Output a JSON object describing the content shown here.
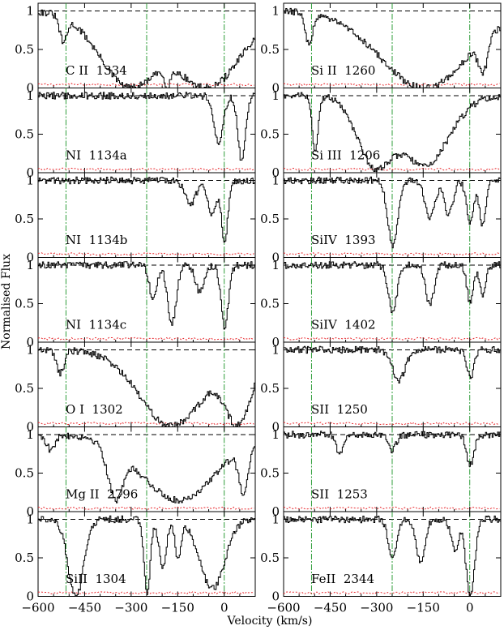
{
  "chart_data": {
    "type": "line",
    "xlabel": "Velocity (km/s)",
    "ylabel": "Normalised Flux",
    "xlim": [
      -600,
      100
    ],
    "ylim": [
      0,
      1.1
    ],
    "x_ticks": [
      -600,
      -450,
      -300,
      -150,
      0
    ],
    "x_tick_labels": [
      "−600",
      "−450",
      "−300",
      "−150",
      "0"
    ],
    "y_ticks": [
      0,
      0.5,
      1
    ],
    "y_tick_labels": [
      "0",
      "0.5",
      "1"
    ],
    "vertical_markers_kms": [
      -510,
      -250,
      0
    ],
    "continuum_level": 1,
    "colors": {
      "flux": "#000000",
      "continuum": "#000000",
      "error": "#e8262b",
      "markers": "#2f9e3a",
      "blend": "#8c8c8c"
    },
    "panels": [
      {
        "column": "left",
        "row": 0,
        "label": "C II  1334",
        "absorptions": [
          [
            -520,
            0.35,
            12
          ],
          [
            -300,
            1.0,
            100
          ],
          [
            -185,
            0.9,
            10
          ],
          [
            -60,
            1.0,
            110
          ]
        ]
      },
      {
        "column": "left",
        "row": 1,
        "label": "NI  1134a",
        "absorptions": [
          [
            -20,
            0.6,
            15
          ],
          [
            55,
            0.85,
            12
          ]
        ]
      },
      {
        "column": "left",
        "row": 2,
        "label": "NI  1134b",
        "absorptions": [
          [
            -110,
            0.3,
            18
          ],
          [
            -40,
            0.45,
            14
          ],
          [
            0,
            0.8,
            10
          ]
        ]
      },
      {
        "column": "left",
        "row": 3,
        "label": "NI  1134c",
        "absorptions": [
          [
            -230,
            0.45,
            12
          ],
          [
            -170,
            0.75,
            14
          ],
          [
            -80,
            0.35,
            14
          ],
          [
            0,
            0.8,
            12
          ]
        ]
      },
      {
        "column": "left",
        "row": 4,
        "label": "O I  1302",
        "absorptions": [
          [
            -530,
            0.3,
            12
          ],
          [
            -170,
            0.98,
            105
          ],
          [
            40,
            0.98,
            45
          ]
        ]
      },
      {
        "column": "left",
        "row": 5,
        "label": "Mg II  2796",
        "absorptions": [
          [
            -560,
            0.2,
            14
          ],
          [
            -350,
            0.8,
            25
          ],
          [
            -150,
            0.85,
            120
          ],
          [
            60,
            0.7,
            15
          ]
        ]
      },
      {
        "column": "left",
        "row": 6,
        "label": "SiII  1304",
        "absorptions": [
          [
            -480,
            1.0,
            25
          ],
          [
            -250,
            0.95,
            10
          ],
          [
            -200,
            0.6,
            12
          ],
          [
            -150,
            0.5,
            10
          ],
          [
            -40,
            0.9,
            40
          ]
        ]
      },
      {
        "column": "right",
        "row": 0,
        "label": "Si II  1260",
        "absorptions": [
          [
            -520,
            0.4,
            12
          ],
          [
            -150,
            1.0,
            140
          ],
          [
            40,
            0.7,
            15
          ]
        ]
      },
      {
        "column": "right",
        "row": 1,
        "label": "Si III  1206",
        "absorptions": [
          [
            -500,
            0.7,
            10
          ],
          [
            -300,
            0.95,
            60
          ],
          [
            -150,
            0.9,
            80
          ]
        ]
      },
      {
        "column": "right",
        "row": 2,
        "label": "SiIV  1393",
        "absorptions": [
          [
            -250,
            0.85,
            16
          ],
          [
            -130,
            0.5,
            16
          ],
          [
            -70,
            0.45,
            14
          ],
          [
            0,
            0.55,
            12
          ],
          [
            40,
            0.6,
            10
          ]
        ]
      },
      {
        "column": "right",
        "row": 3,
        "label": "SiIV  1402",
        "absorptions": [
          [
            -250,
            0.6,
            14
          ],
          [
            -130,
            0.5,
            14
          ],
          [
            0,
            0.5,
            10
          ],
          [
            40,
            0.4,
            10
          ]
        ]
      },
      {
        "column": "right",
        "row": 4,
        "label": "SII  1250",
        "absorptions": [
          [
            -230,
            0.4,
            20
          ],
          [
            0,
            0.35,
            12
          ]
        ]
      },
      {
        "column": "right",
        "row": 5,
        "label": "SII  1253",
        "absorptions": [
          [
            -420,
            0.25,
            12
          ],
          [
            -250,
            0.2,
            12
          ],
          [
            0,
            0.4,
            12
          ]
        ]
      },
      {
        "column": "right",
        "row": 6,
        "label": "FeII  2344",
        "absorptions": [
          [
            -250,
            0.5,
            14
          ],
          [
            -160,
            0.55,
            14
          ],
          [
            -50,
            0.4,
            12
          ],
          [
            0,
            1.0,
            14
          ]
        ]
      }
    ]
  }
}
